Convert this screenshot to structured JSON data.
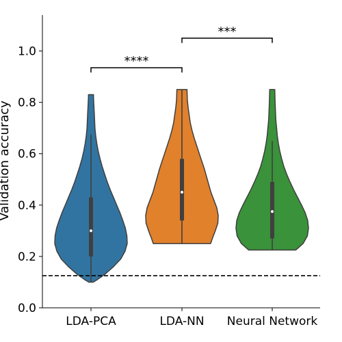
{
  "chart_data": {
    "type": "violin",
    "title": "",
    "xlabel": "",
    "ylabel": "Validation accuracy",
    "ylim": [
      0.0,
      1.14
    ],
    "yticks": [
      "0.0",
      "0.2",
      "0.4",
      "0.6",
      "0.8",
      "1.0"
    ],
    "grid": false,
    "categories": [
      "LDA-PCA",
      "LDA-NN",
      "Neural Network"
    ],
    "colors": [
      "#3274a1",
      "#e1812c",
      "#3a923a"
    ],
    "series": [
      {
        "category": "LDA-PCA",
        "min": 0.1,
        "q1": 0.2,
        "median": 0.3,
        "q3": 0.43,
        "max": 0.83,
        "whisker_low": 0.1,
        "whisker_high": 0.675,
        "density": [
          [
            0.1,
            0.06
          ],
          [
            0.11,
            0.18
          ],
          [
            0.13,
            0.38
          ],
          [
            0.16,
            0.62
          ],
          [
            0.19,
            0.82
          ],
          [
            0.22,
            0.94
          ],
          [
            0.25,
            1.0
          ],
          [
            0.28,
            0.99
          ],
          [
            0.31,
            0.95
          ],
          [
            0.34,
            0.88
          ],
          [
            0.37,
            0.8
          ],
          [
            0.4,
            0.71
          ],
          [
            0.43,
            0.62
          ],
          [
            0.46,
            0.53
          ],
          [
            0.49,
            0.45
          ],
          [
            0.52,
            0.38
          ],
          [
            0.55,
            0.31
          ],
          [
            0.58,
            0.25
          ],
          [
            0.61,
            0.2
          ],
          [
            0.64,
            0.16
          ],
          [
            0.67,
            0.13
          ],
          [
            0.7,
            0.11
          ],
          [
            0.73,
            0.1
          ],
          [
            0.76,
            0.09
          ],
          [
            0.79,
            0.08
          ],
          [
            0.82,
            0.07
          ],
          [
            0.83,
            0.07
          ]
        ]
      },
      {
        "category": "LDA-NN",
        "min": 0.25,
        "q1": 0.34,
        "median": 0.45,
        "q3": 0.58,
        "max": 0.85,
        "whisker_low": 0.25,
        "whisker_high": 0.85,
        "density": [
          [
            0.25,
            0.79
          ],
          [
            0.27,
            0.84
          ],
          [
            0.3,
            0.92
          ],
          [
            0.33,
            0.99
          ],
          [
            0.36,
            1.0
          ],
          [
            0.39,
            0.96
          ],
          [
            0.42,
            0.88
          ],
          [
            0.45,
            0.8
          ],
          [
            0.48,
            0.74
          ],
          [
            0.51,
            0.68
          ],
          [
            0.54,
            0.62
          ],
          [
            0.57,
            0.55
          ],
          [
            0.6,
            0.48
          ],
          [
            0.63,
            0.41
          ],
          [
            0.66,
            0.34
          ],
          [
            0.69,
            0.28
          ],
          [
            0.72,
            0.23
          ],
          [
            0.75,
            0.2
          ],
          [
            0.78,
            0.17
          ],
          [
            0.81,
            0.15
          ],
          [
            0.85,
            0.14
          ]
        ]
      },
      {
        "category": "Neural Network",
        "min": 0.225,
        "q1": 0.27,
        "median": 0.375,
        "q3": 0.49,
        "max": 0.85,
        "whisker_low": 0.225,
        "whisker_high": 0.65,
        "density": [
          [
            0.225,
            0.65
          ],
          [
            0.25,
            0.85
          ],
          [
            0.28,
            0.97
          ],
          [
            0.31,
            1.0
          ],
          [
            0.34,
            0.98
          ],
          [
            0.37,
            0.91
          ],
          [
            0.4,
            0.81
          ],
          [
            0.43,
            0.7
          ],
          [
            0.46,
            0.59
          ],
          [
            0.49,
            0.49
          ],
          [
            0.52,
            0.4
          ],
          [
            0.55,
            0.32
          ],
          [
            0.58,
            0.26
          ],
          [
            0.61,
            0.21
          ],
          [
            0.64,
            0.17
          ],
          [
            0.67,
            0.14
          ],
          [
            0.7,
            0.12
          ],
          [
            0.73,
            0.1
          ],
          [
            0.76,
            0.09
          ],
          [
            0.8,
            0.08
          ],
          [
            0.85,
            0.07
          ]
        ]
      }
    ],
    "reference_line": {
      "y": 0.125,
      "style": "dashed"
    },
    "significance": [
      {
        "from": "LDA-PCA",
        "to": "LDA-NN",
        "y": 0.935,
        "label": "****"
      },
      {
        "from": "LDA-NN",
        "to": "Neural Network",
        "y": 1.05,
        "label": "***"
      }
    ]
  }
}
